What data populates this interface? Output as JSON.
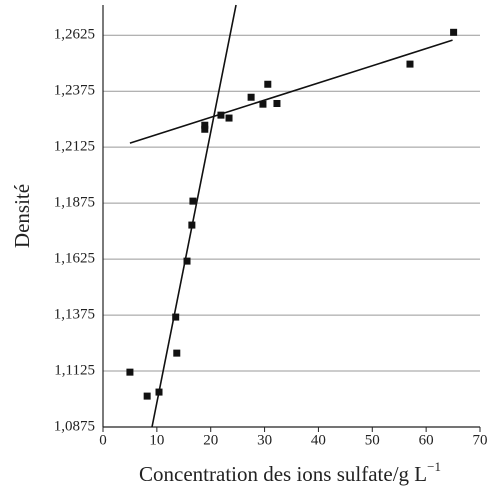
{
  "chart_data": {
    "type": "scatter",
    "xlabel": "Concentration des ions sulfate/g L",
    "xlabel_superscript": "−1",
    "ylabel": "Densité",
    "x": [
      5.0,
      8.2,
      10.4,
      13.7,
      13.5,
      15.6,
      16.5,
      16.7,
      18.9,
      18.9,
      21.9,
      23.4,
      27.5,
      29.7,
      30.6,
      32.3,
      57.0,
      65.1
    ],
    "values": [
      1.112,
      1.1013,
      1.1031,
      1.1205,
      1.1366,
      1.1616,
      1.1777,
      1.1884,
      1.2223,
      1.2205,
      1.2268,
      1.2255,
      1.2348,
      1.2317,
      1.2406,
      1.232,
      1.2496,
      1.2638
    ],
    "color": "#111111",
    "lines": [
      {
        "x": [
          9.1,
          24.7
        ],
        "y": [
          1.0875,
          1.276
        ]
      },
      {
        "x": [
          5.0,
          64.9
        ],
        "y": [
          1.2143,
          1.2603
        ]
      }
    ],
    "xlim": [
      0,
      70
    ],
    "xticks": [
      0,
      10,
      20,
      30,
      40,
      50,
      60,
      70
    ],
    "ylim": [
      1.0875,
      1.276
    ],
    "yticks": [
      {
        "value": 1.0875,
        "label": "1,0875"
      },
      {
        "value": 1.1125,
        "label": "1,1125"
      },
      {
        "value": 1.1375,
        "label": "1,1375"
      },
      {
        "value": 1.1625,
        "label": "1,1625"
      },
      {
        "value": 1.1875,
        "label": "1,1875"
      },
      {
        "value": 1.2125,
        "label": "1,2125"
      },
      {
        "value": 1.2375,
        "label": "1,2375"
      },
      {
        "value": 1.2625,
        "label": "1,2625"
      }
    ],
    "grid": true
  }
}
